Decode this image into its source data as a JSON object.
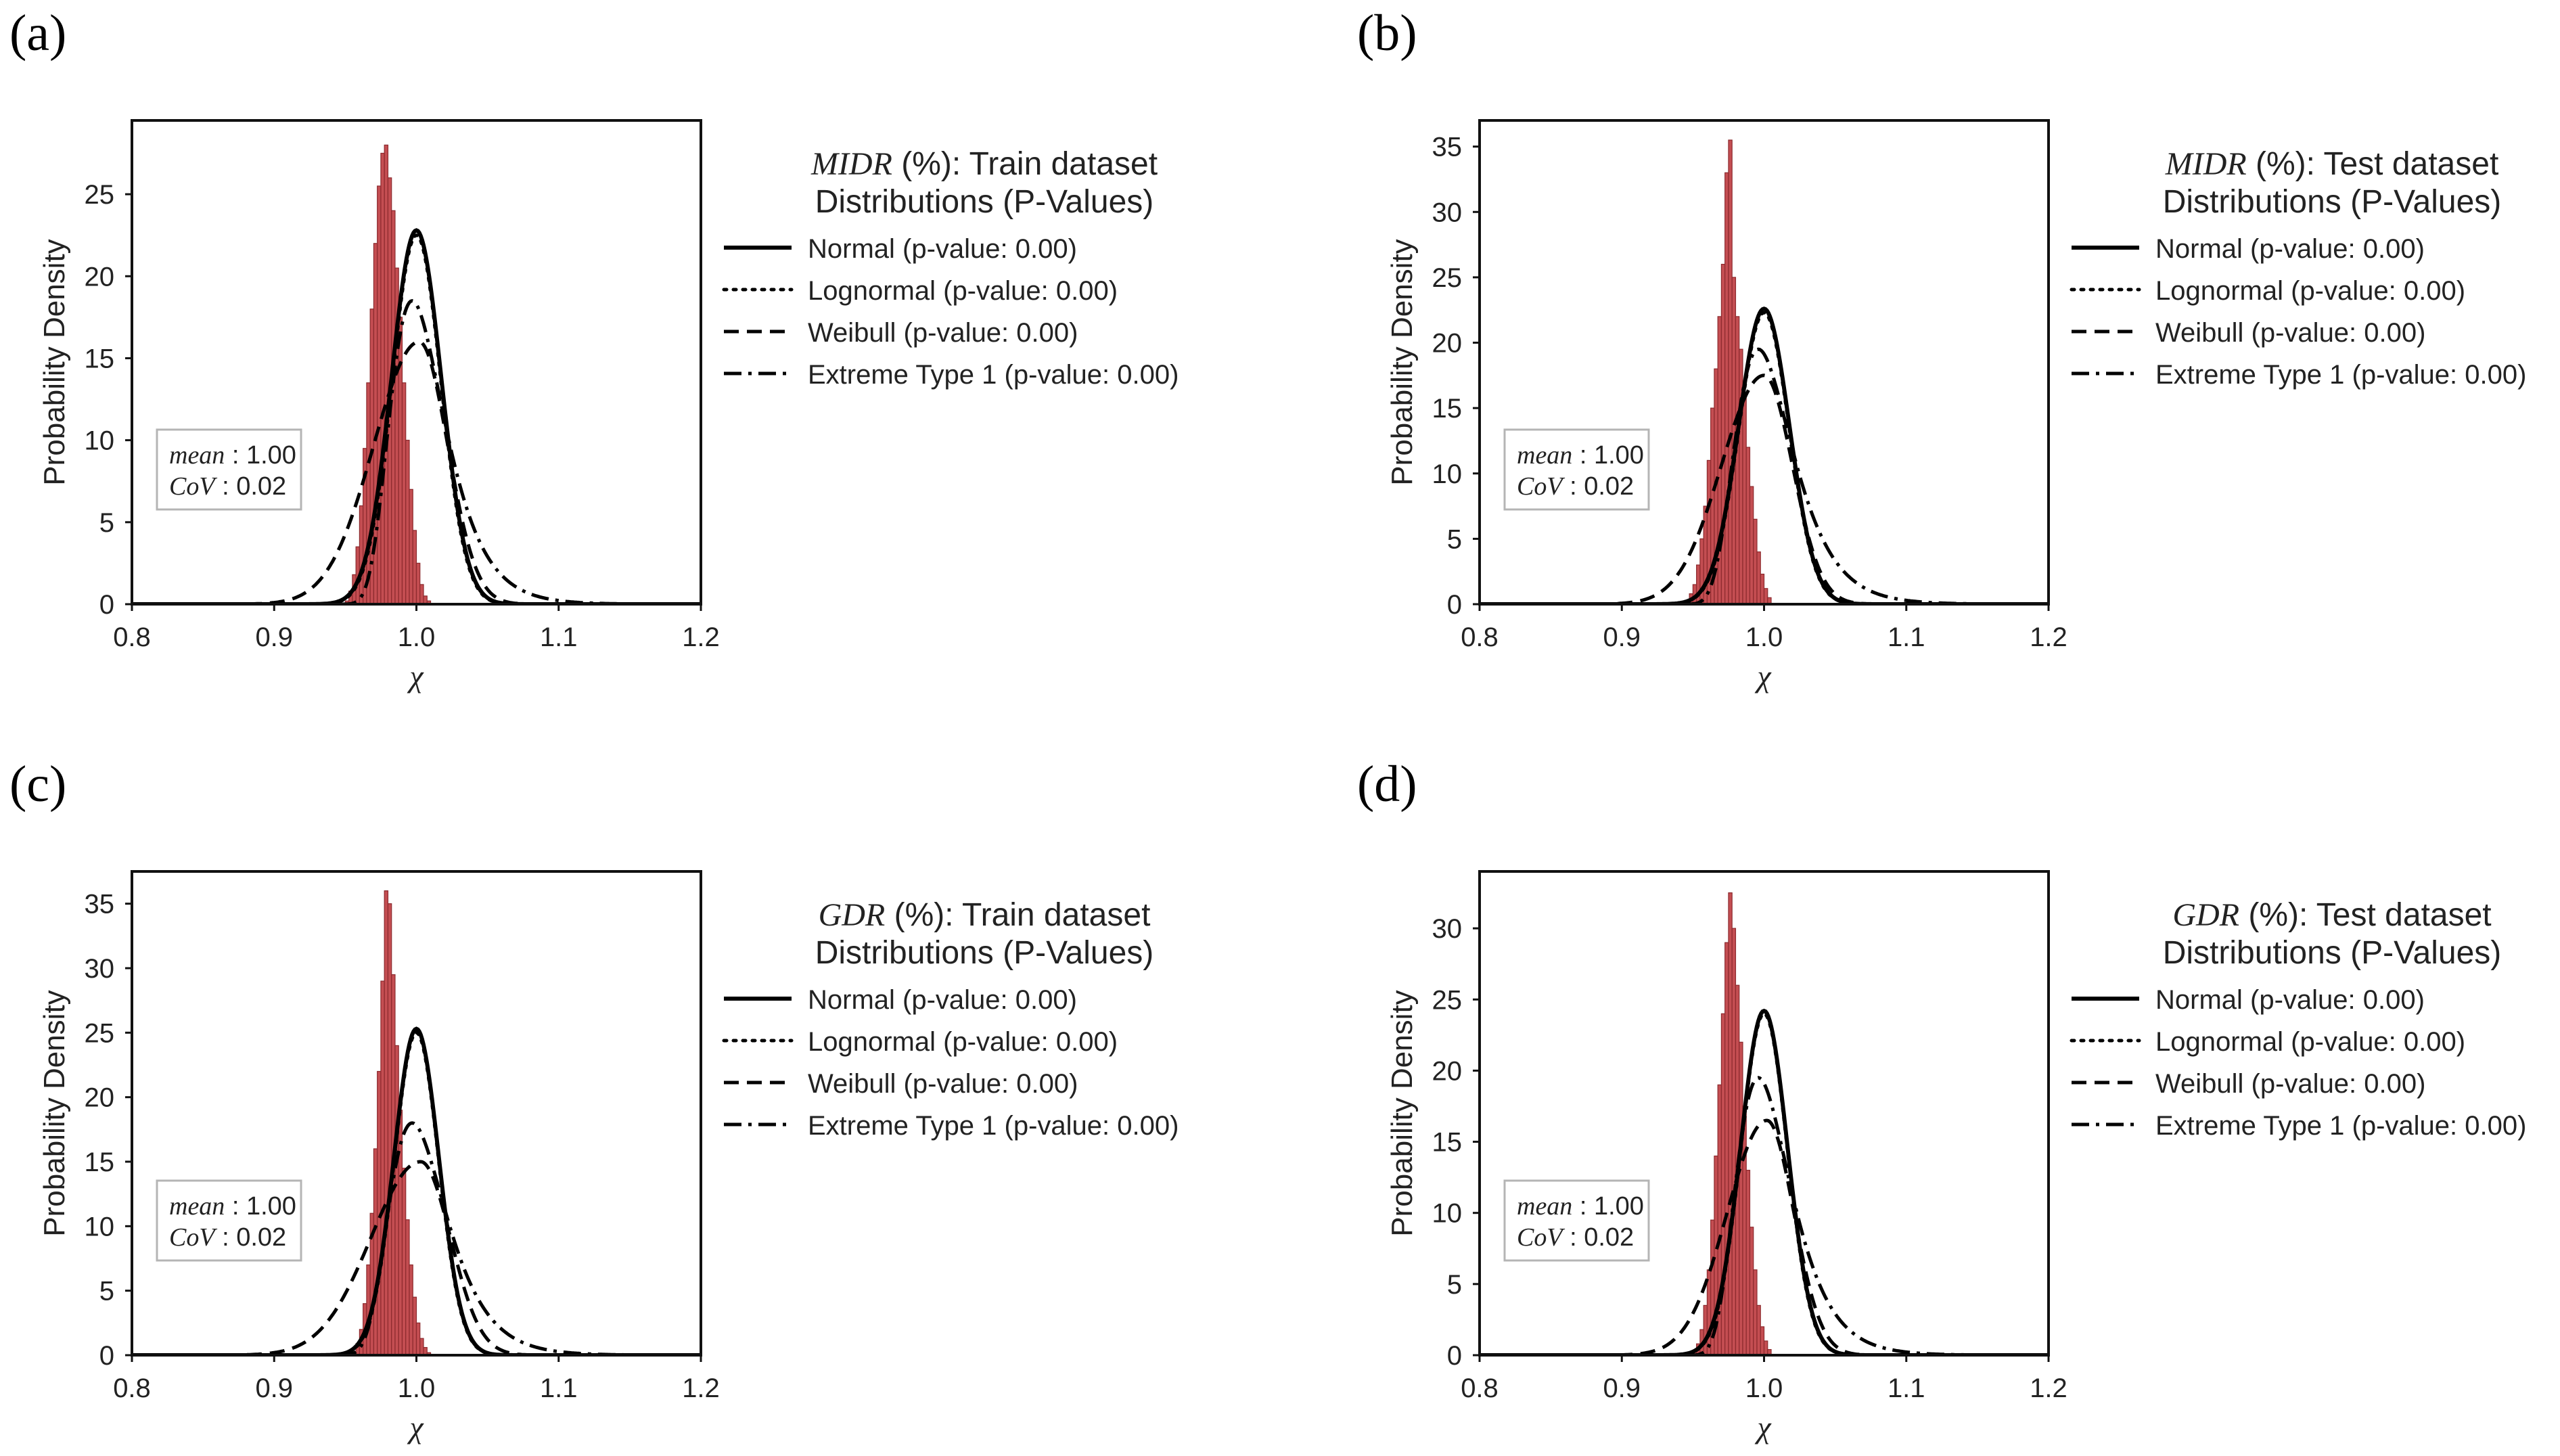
{
  "colors": {
    "bar_fill": "#c44e52",
    "bar_edge": "#8c2a2e",
    "axis": "#111111",
    "text": "#222222",
    "stats_box_edge": "#b5b5b5"
  },
  "chart_data": [
    {
      "type": "histogram",
      "panel_label": "(a)",
      "legend_title_var": "MIDR",
      "legend_title_rest": " (%): Train dataset",
      "legend_subtitle": "Distributions (P-Values)",
      "legend_entries": [
        {
          "label": "Normal (p-value: 0.00)",
          "style": "solid"
        },
        {
          "label": "Lognormal (p-value: 0.00)",
          "style": "dotted"
        },
        {
          "label": "Weibull (p-value: 0.00)",
          "style": "dashed"
        },
        {
          "label": "Extreme Type 1 (p-value: 0.00)",
          "style": "dashdot"
        }
      ],
      "xlabel": "χ",
      "ylabel": "Probability Density",
      "xlim": [
        0.8,
        1.2
      ],
      "ylim": [
        0,
        29.5
      ],
      "xticks": [
        0.8,
        0.9,
        1.0,
        1.1,
        1.2
      ],
      "xtick_labels": [
        "0.8",
        "0.9",
        "1.0",
        "1.1",
        "1.2"
      ],
      "yticks": [
        0,
        5,
        10,
        15,
        20,
        25
      ],
      "stats": {
        "mean_label": "mean",
        "mean_value": "1.00",
        "cov_label": "CoV",
        "cov_value": "0.02"
      },
      "hist": {
        "start": 0.95,
        "width": 0.0025,
        "values": [
          0.2,
          0.8,
          1.8,
          3.5,
          6.0,
          9.5,
          13.5,
          18.0,
          22.0,
          25.5,
          27.5,
          28.0,
          26.0,
          24.0,
          20.5,
          17.5,
          13.5,
          10.0,
          7.0,
          4.5,
          2.5,
          1.2,
          0.5,
          0.2
        ]
      },
      "fits": {
        "normal": {
          "kind": "gauss",
          "mu": 1.0,
          "sigma": 0.0175,
          "peak": 22.8
        },
        "lognormal": {
          "kind": "gauss",
          "mu": 1.0,
          "sigma": 0.0172,
          "peak": 22.5
        },
        "weibull": {
          "kind": "weibull",
          "mu": 1.002,
          "sl": 0.032,
          "sr": 0.02,
          "peak": 16.0
        },
        "extreme": {
          "kind": "gumbel",
          "mu": 0.997,
          "beta": 0.019,
          "peak": 18.5
        }
      }
    },
    {
      "type": "histogram",
      "panel_label": "(b)",
      "legend_title_var": "MIDR",
      "legend_title_rest": " (%): Test dataset",
      "legend_subtitle": "Distributions (P-Values)",
      "legend_entries": [
        {
          "label": "Normal (p-value: 0.00)",
          "style": "solid"
        },
        {
          "label": "Lognormal (p-value: 0.00)",
          "style": "dotted"
        },
        {
          "label": "Weibull (p-value: 0.00)",
          "style": "dashed"
        },
        {
          "label": "Extreme Type 1 (p-value: 0.00)",
          "style": "dashdot"
        }
      ],
      "xlabel": "χ",
      "ylabel": "Probability Density",
      "xlim": [
        0.8,
        1.2
      ],
      "ylim": [
        0,
        37
      ],
      "xticks": [
        0.8,
        0.9,
        1.0,
        1.1,
        1.2
      ],
      "xtick_labels": [
        "0.8",
        "0.9",
        "1.0",
        "1.1",
        "1.2"
      ],
      "yticks": [
        0,
        5,
        10,
        15,
        20,
        25,
        30,
        35
      ],
      "stats": {
        "mean_label": "mean",
        "mean_value": "1.00",
        "cov_label": "CoV",
        "cov_value": "0.02"
      },
      "hist": {
        "start": 0.945,
        "width": 0.0025,
        "values": [
          0.3,
          0.8,
          1.5,
          3.0,
          5.0,
          7.5,
          11.0,
          15.0,
          18.0,
          22.0,
          26.0,
          33.0,
          35.5,
          25.0,
          22.0,
          19.5,
          16.0,
          12.0,
          9.0,
          6.5,
          4.0,
          2.3,
          1.2,
          0.5
        ]
      },
      "fits": {
        "normal": {
          "kind": "gauss",
          "mu": 1.0,
          "sigma": 0.0178,
          "peak": 22.6
        },
        "lognormal": {
          "kind": "gauss",
          "mu": 1.0,
          "sigma": 0.0176,
          "peak": 22.3
        },
        "weibull": {
          "kind": "weibull",
          "mu": 1.0,
          "sl": 0.03,
          "sr": 0.02,
          "peak": 17.5
        },
        "extreme": {
          "kind": "gumbel",
          "mu": 0.996,
          "beta": 0.02,
          "peak": 19.5
        }
      }
    },
    {
      "type": "histogram",
      "panel_label": "(c)",
      "legend_title_var": "GDR",
      "legend_title_rest": " (%): Train dataset",
      "legend_subtitle": "Distributions (P-Values)",
      "legend_entries": [
        {
          "label": "Normal (p-value: 0.00)",
          "style": "solid"
        },
        {
          "label": "Lognormal (p-value: 0.00)",
          "style": "dotted"
        },
        {
          "label": "Weibull (p-value: 0.00)",
          "style": "dashed"
        },
        {
          "label": "Extreme Type 1 (p-value: 0.00)",
          "style": "dashdot"
        }
      ],
      "xlabel": "χ",
      "ylabel": "Probability Density",
      "xlim": [
        0.8,
        1.2
      ],
      "ylim": [
        0,
        37.5
      ],
      "xticks": [
        0.8,
        0.9,
        1.0,
        1.1,
        1.2
      ],
      "xtick_labels": [
        "0.8",
        "0.9",
        "1.0",
        "1.1",
        "1.2"
      ],
      "yticks": [
        0,
        5,
        10,
        15,
        20,
        25,
        30,
        35
      ],
      "stats": {
        "mean_label": "mean",
        "mean_value": "1.00",
        "cov_label": "CoV",
        "cov_value": "0.02"
      },
      "hist": {
        "start": 0.955,
        "width": 0.0025,
        "values": [
          0.3,
          0.9,
          2.0,
          4.0,
          7.0,
          11.0,
          16.0,
          22.0,
          29.0,
          36.0,
          35.0,
          29.5,
          24.0,
          19.0,
          14.5,
          10.5,
          7.0,
          4.5,
          2.5,
          1.3,
          0.6,
          0.2
        ]
      },
      "fits": {
        "normal": {
          "kind": "gauss",
          "mu": 1.0,
          "sigma": 0.0158,
          "peak": 25.3
        },
        "lognormal": {
          "kind": "gauss",
          "mu": 1.0,
          "sigma": 0.0156,
          "peak": 25.0
        },
        "weibull": {
          "kind": "weibull",
          "mu": 1.003,
          "sl": 0.035,
          "sr": 0.021,
          "peak": 15.0
        },
        "extreme": {
          "kind": "gumbel",
          "mu": 0.997,
          "beta": 0.02,
          "peak": 18.0
        }
      }
    },
    {
      "type": "histogram",
      "panel_label": "(d)",
      "legend_title_var": "GDR",
      "legend_title_rest": " (%): Test dataset",
      "legend_subtitle": "Distributions (P-Values)",
      "legend_entries": [
        {
          "label": "Normal (p-value: 0.00)",
          "style": "solid"
        },
        {
          "label": "Lognormal (p-value: 0.00)",
          "style": "dotted"
        },
        {
          "label": "Weibull (p-value: 0.00)",
          "style": "dashed"
        },
        {
          "label": "Extreme Type 1 (p-value: 0.00)",
          "style": "dashdot"
        }
      ],
      "xlabel": "χ",
      "ylabel": "Probability Density",
      "xlim": [
        0.8,
        1.2
      ],
      "ylim": [
        0,
        34
      ],
      "xticks": [
        0.8,
        0.9,
        1.0,
        1.1,
        1.2
      ],
      "xtick_labels": [
        "0.8",
        "0.9",
        "1.0",
        "1.1",
        "1.2"
      ],
      "yticks": [
        0,
        5,
        10,
        15,
        20,
        25,
        30
      ],
      "stats": {
        "mean_label": "mean",
        "mean_value": "1.00",
        "cov_label": "CoV",
        "cov_value": "0.02"
      },
      "hist": {
        "start": 0.95,
        "width": 0.0025,
        "values": [
          0.3,
          0.8,
          1.8,
          3.5,
          6.0,
          9.5,
          14.0,
          19.0,
          24.0,
          29.0,
          32.5,
          30.0,
          26.0,
          22.0,
          17.5,
          13.0,
          9.0,
          6.0,
          3.5,
          2.0,
          1.0,
          0.4
        ]
      },
      "fits": {
        "normal": {
          "kind": "gauss",
          "mu": 1.0,
          "sigma": 0.0165,
          "peak": 24.2
        },
        "lognormal": {
          "kind": "gauss",
          "mu": 1.0,
          "sigma": 0.0163,
          "peak": 24.0
        },
        "weibull": {
          "kind": "weibull",
          "mu": 1.002,
          "sl": 0.028,
          "sr": 0.019,
          "peak": 16.5
        },
        "extreme": {
          "kind": "gumbel",
          "mu": 0.996,
          "beta": 0.019,
          "peak": 19.5
        }
      }
    }
  ]
}
